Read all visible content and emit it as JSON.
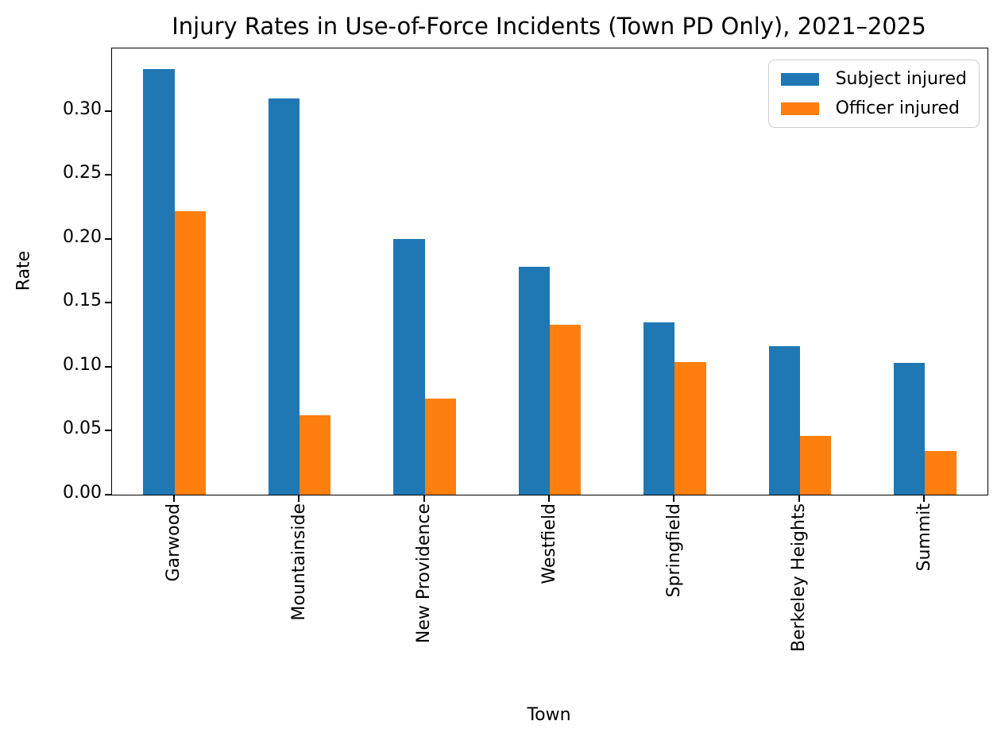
{
  "chart_data": {
    "type": "bar",
    "title": "Injury Rates in Use-of-Force Incidents (Town PD Only), 2021–2025",
    "xlabel": "Town",
    "ylabel": "Rate",
    "categories": [
      "Garwood",
      "Mountainside",
      "New Providence",
      "Westfield",
      "Springfield",
      "Berkeley Heights",
      "Summit"
    ],
    "series": [
      {
        "name": "Subject injured",
        "color": "#1f77b4",
        "values": [
          0.333,
          0.31,
          0.2,
          0.178,
          0.135,
          0.116,
          0.103
        ]
      },
      {
        "name": "Officer injured",
        "color": "#ff7f0e",
        "values": [
          0.222,
          0.062,
          0.075,
          0.133,
          0.104,
          0.046,
          0.034
        ]
      }
    ],
    "ylim": [
      0,
      0.349
    ],
    "yticks": [
      0.0,
      0.05,
      0.1,
      0.15,
      0.2,
      0.25,
      0.3
    ],
    "ytick_format_decimals": 2,
    "x_tick_rotation": 90,
    "grid": false,
    "legend_position": "upper right",
    "axis_color": "#000000",
    "legend_border_color": "#cccccc"
  }
}
